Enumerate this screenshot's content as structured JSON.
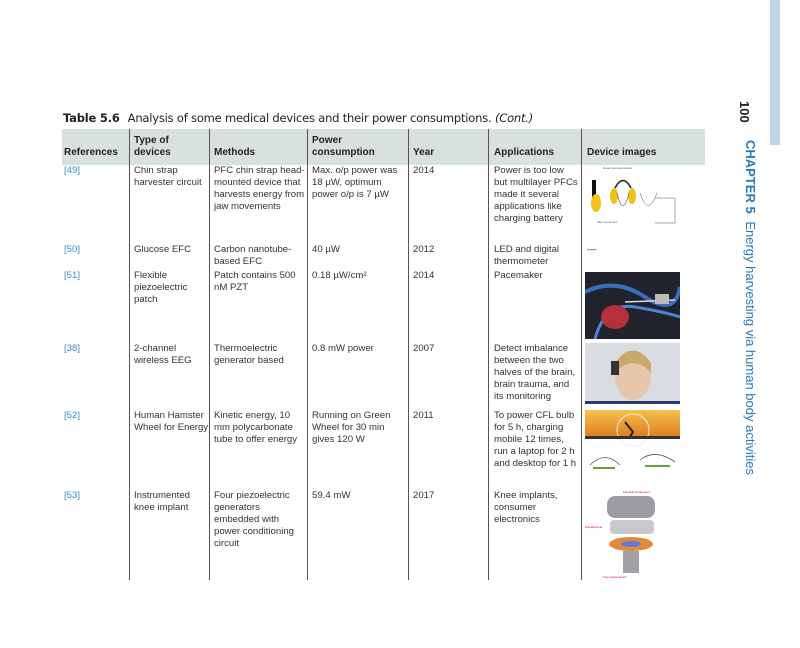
{
  "caption": {
    "label": "Table 5.6",
    "text": "Analysis of some medical devices and their power consumptions.",
    "cont": "(Cont.)"
  },
  "headers": [
    "References",
    "Type of devices",
    "Methods",
    "Power consumption",
    "Year",
    "Applications",
    "Device images"
  ],
  "rows": [
    {
      "ref": "[49]",
      "type": "Chin strap harvester circuit",
      "methods": "PFC chin strap head-mounted device that harvests energy from jaw movements",
      "power": "Max. o/p power was 18 µW, optimum power o/p is 7 µW",
      "year": "2014",
      "apps": "Power is too low but multilayer PFCs made it several applications like charging battery",
      "image": "chin-strap-diagram"
    },
    {
      "ref": "[50]",
      "type": "Glucose EFC",
      "methods": "Carbon nanotube-based EFC",
      "power": "40 µW",
      "year": "2012",
      "apps": "LED and digital thermometer",
      "image": "—"
    },
    {
      "ref": "[51]",
      "type": "Flexible piezoelectric patch",
      "methods": "Patch contains 500 nM PZT",
      "power": "0.18 µW/cm²",
      "year": "2014",
      "apps": "Pacemaker",
      "image": "pacemaker-photo"
    },
    {
      "ref": "[38]",
      "type": "2-channel wireless EEG",
      "methods": "Thermoelectric generator based",
      "power": "0.8 mW power",
      "year": "2007",
      "apps": "Detect imbalance between the two halves of the brain, brain trauma, and its monitoring",
      "image": "eeg-headset-photo"
    },
    {
      "ref": "[52]",
      "type": "Human Hamster Wheel for Energy",
      "methods": "Kinetic energy, 10 mm polycarbonate tube to offer energy",
      "power": "Running on Green Wheel for 30 min gives 120 W",
      "year": "2011",
      "apps": "To power CFL bulb for 5 h, charging mobile 12 times, run a laptop for 2 h and desktop for 1 h",
      "image": "hamster-wheel-photo"
    },
    {
      "ref": "[53]",
      "type": "Instrumented knee implant",
      "methods": "Four piezoelectric generators embedded with power conditioning circuit",
      "power": "59.4 mW",
      "year": "2017",
      "apps": "Knee implants, consumer electronics",
      "image": "knee-implant-diagram"
    }
  ],
  "side": {
    "page": "100",
    "chapter": "CHAPTER 5",
    "title": "Energy harvesting via human body activities"
  },
  "colors": {
    "header_bg": "#d9e1dd",
    "ref_link": "#3a8fc8",
    "chapter": "#2a7ab8"
  }
}
